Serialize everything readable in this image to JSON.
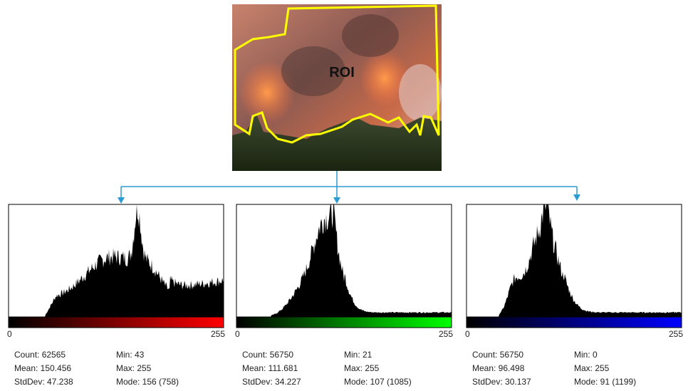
{
  "roi_label": "ROI",
  "panels": [
    {
      "axis_min": "0",
      "axis_max": "255",
      "stats": {
        "count": "Count: 62565",
        "mean": "Mean: 150.456",
        "stddev": "StdDev: 47.238",
        "min": "Min: 43",
        "max": "Max: 255",
        "mode": "Mode: 156 (758)"
      }
    },
    {
      "axis_min": "0",
      "axis_max": "255",
      "stats": {
        "count": "Count: 56750",
        "mean": "Mean: 111.681",
        "stddev": "StdDev: 34.227",
        "min": "Min: 21",
        "max": "Max: 255",
        "mode": "Mode: 107 (1085)"
      }
    },
    {
      "axis_min": "0",
      "axis_max": "255",
      "stats": {
        "count": "Count: 56750",
        "mean": "Mean: 96.498",
        "stddev": "StdDev: 30.137",
        "min": "Min: 0",
        "max": "Max: 255",
        "mode": "Mode: 91 (1199)"
      }
    }
  ]
}
